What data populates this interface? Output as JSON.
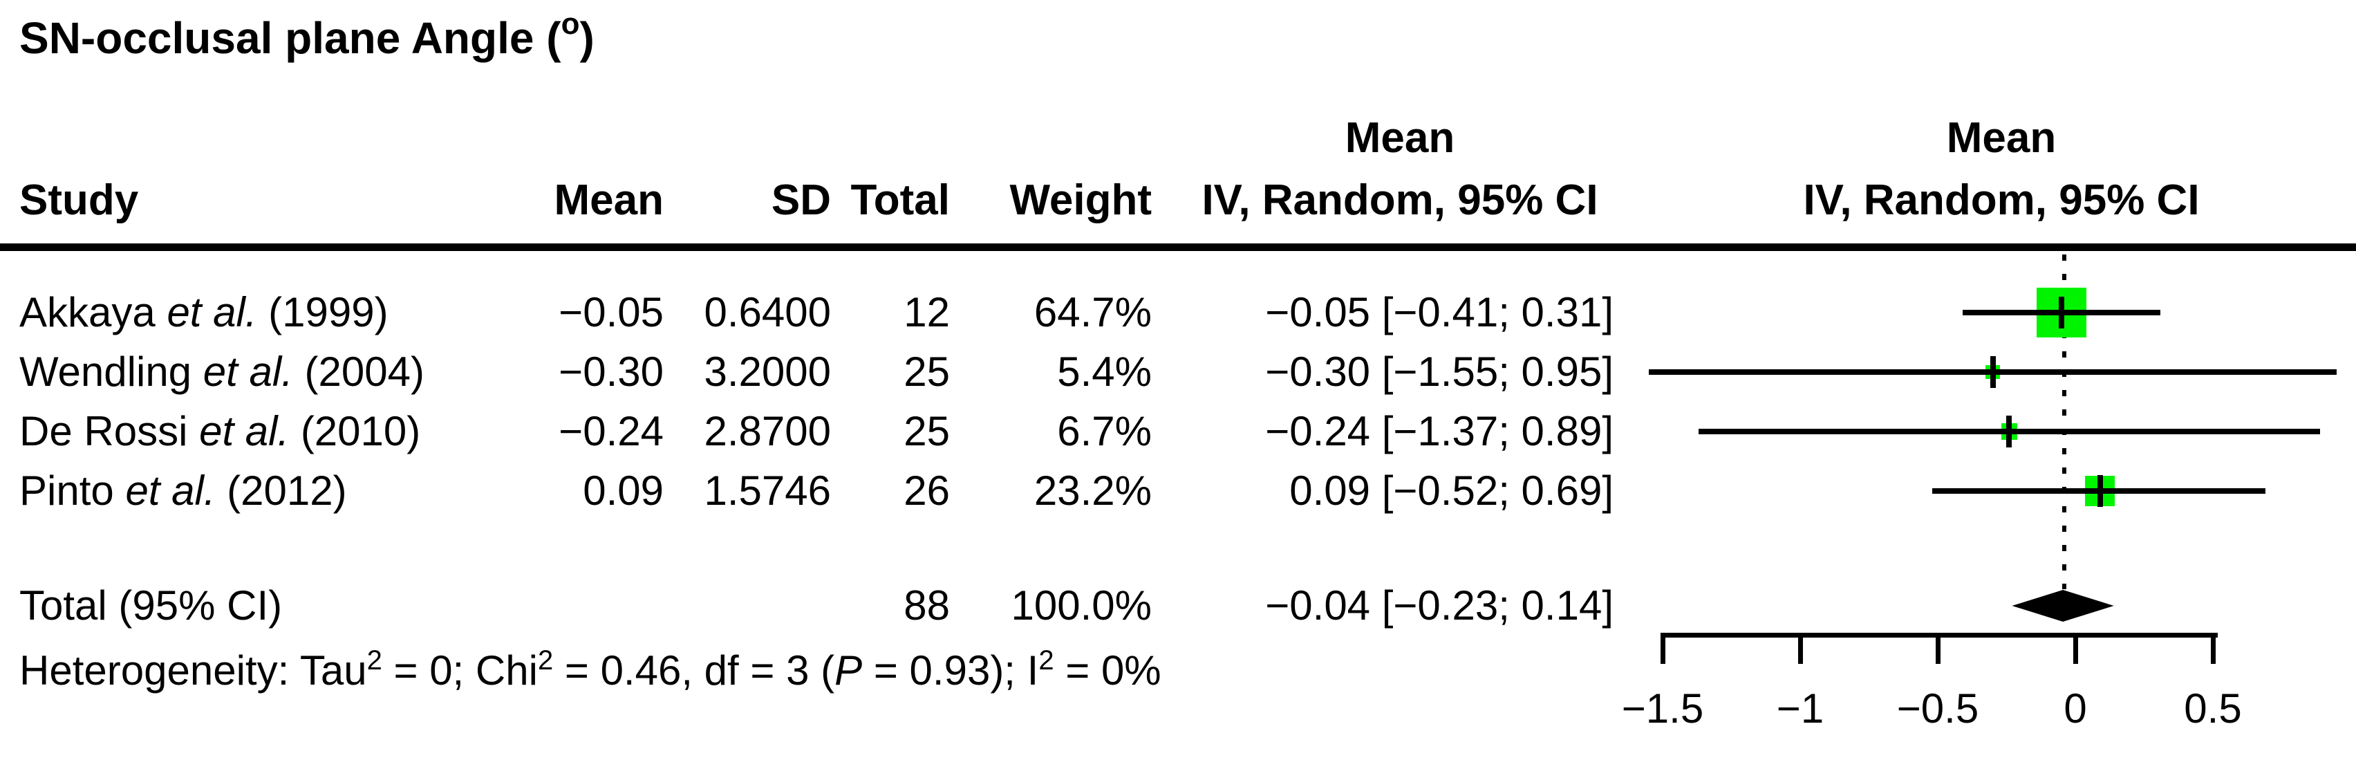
{
  "title": {
    "text_before_sup": "SN-occlusal plane Angle (",
    "sup": "o",
    "text_after_sup": ")"
  },
  "table_headers": {
    "study": "Study",
    "mean": "Mean",
    "sd": "SD",
    "total": "Total",
    "weight": "Weight",
    "effect_line1": "Mean",
    "effect_line2": "IV, Random, 95% CI",
    "plot_line1": "Mean",
    "plot_line2": "IV, Random, 95% CI"
  },
  "chart_data": {
    "type": "forest",
    "title": "SN-occlusal plane Angle (°)",
    "x_axis": {
      "tick_labels": [
        "−1.5",
        "−1",
        "−0.5",
        "0",
        "0.5"
      ],
      "tick_values": [
        -1.5,
        -1,
        -0.5,
        0,
        0.5
      ],
      "range": [
        -1.5,
        0.5
      ],
      "grid": false
    },
    "square_color": "#00f400",
    "studies": [
      {
        "study": "Akkaya",
        "etal": "et al.",
        "year": "(1999)",
        "mean_str": "−0.05",
        "sd_str": "0.6400",
        "total_str": "12",
        "weight_str": "64.7%",
        "ci_str": "−0.05 [−0.41; 0.31]",
        "mean": -0.05,
        "ci_low": -0.41,
        "ci_high": 0.31,
        "weight": 64.7,
        "total": 12,
        "sd": 0.64
      },
      {
        "study": "Wendling",
        "etal": "et al.",
        "year": "(2004)",
        "mean_str": "−0.30",
        "sd_str": "3.2000",
        "total_str": "25",
        "weight_str": "5.4%",
        "ci_str": "−0.30 [−1.55; 0.95]",
        "mean": -0.3,
        "ci_low": -1.55,
        "ci_high": 0.95,
        "weight": 5.4,
        "total": 25,
        "sd": 3.2
      },
      {
        "study": "De Rossi",
        "etal": "et al.",
        "year": "(2010)",
        "mean_str": "−0.24",
        "sd_str": "2.8700",
        "total_str": "25",
        "weight_str": "6.7%",
        "ci_str": "−0.24 [−1.37; 0.89]",
        "mean": -0.24,
        "ci_low": -1.37,
        "ci_high": 0.89,
        "weight": 6.7,
        "total": 25,
        "sd": 2.87
      },
      {
        "study": "Pinto",
        "etal": "et al.",
        "year": "(2012)",
        "mean_str": "0.09",
        "sd_str": "1.5746",
        "total_str": "26",
        "weight_str": "23.2%",
        "ci_str": "0.09 [−0.52; 0.69]",
        "mean": 0.09,
        "ci_low": -0.52,
        "ci_high": 0.69,
        "weight": 23.2,
        "total": 26,
        "sd": 1.5746
      }
    ],
    "overall": {
      "label": "Total (95% CI)",
      "total_str": "88",
      "weight_str": "100.0%",
      "ci_str": "−0.04 [−0.23; 0.14]",
      "mean": -0.04,
      "ci_low": -0.23,
      "ci_high": 0.14
    },
    "heterogeneity": {
      "segments": [
        {
          "t": "Heterogeneity: Tau"
        },
        {
          "t": "2",
          "sup": true
        },
        {
          "t": " = 0; Chi"
        },
        {
          "t": "2",
          "sup": true
        },
        {
          "t": " = 0.46, df = 3 ("
        },
        {
          "t": "P",
          "italic": true
        },
        {
          "t": " = 0.93); I"
        },
        {
          "t": "2",
          "sup": true
        },
        {
          "t": " = 0%"
        }
      ]
    }
  }
}
